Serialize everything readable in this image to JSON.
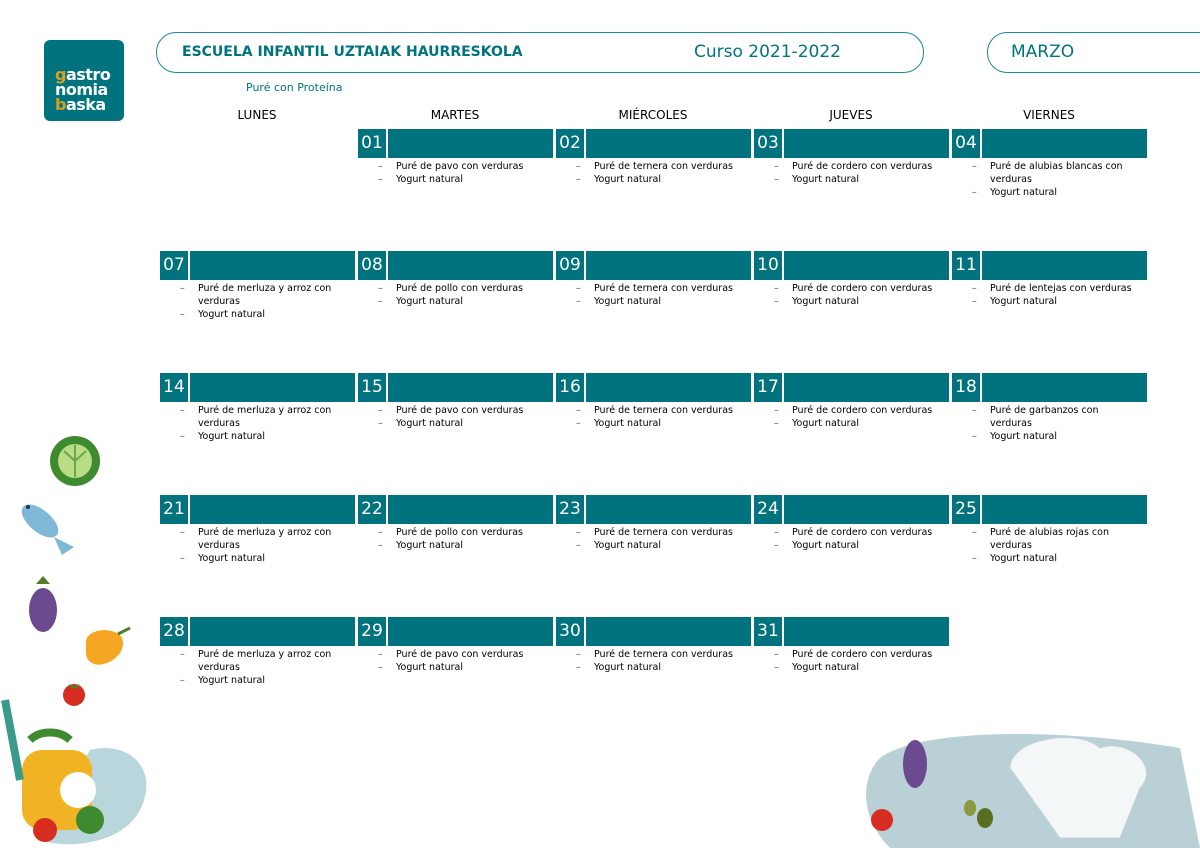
{
  "logo": {
    "line1": "gastro",
    "line2": "nomia",
    "line3": "baska",
    "accent": "#d9a01e"
  },
  "header": {
    "school": "ESCUELA INFANTIL UZTAIAK HAURRESKOLA",
    "course": "Curso 2021-2022",
    "month": "MARZO"
  },
  "subtitle": "Puré con Proteína",
  "colors": {
    "primary": "#00737f"
  },
  "weekdays": [
    "LUNES",
    "MARTES",
    "MIÉRCOLES",
    "JUEVES",
    "VIERNES"
  ],
  "weeks": [
    [
      null,
      {
        "day": "01",
        "items": [
          "Puré de pavo con verduras",
          "Yogurt natural"
        ]
      },
      {
        "day": "02",
        "items": [
          "Puré de ternera con verduras",
          "Yogurt natural"
        ]
      },
      {
        "day": "03",
        "items": [
          "Puré de cordero con verduras",
          "Yogurt natural"
        ]
      },
      {
        "day": "04",
        "items": [
          "Puré de alubias blancas con verduras",
          "Yogurt natural"
        ]
      }
    ],
    [
      {
        "day": "07",
        "items": [
          "Puré de merluza y arroz con verduras",
          "Yogurt natural"
        ]
      },
      {
        "day": "08",
        "items": [
          "Puré de pollo con verduras",
          "Yogurt natural"
        ]
      },
      {
        "day": "09",
        "items": [
          "Puré de ternera con verduras",
          "Yogurt natural"
        ]
      },
      {
        "day": "10",
        "items": [
          "Puré de cordero con verduras",
          "Yogurt natural"
        ]
      },
      {
        "day": "11",
        "items": [
          "Puré de lentejas con verduras",
          "Yogurt natural"
        ]
      }
    ],
    [
      {
        "day": "14",
        "items": [
          "Puré de merluza y arroz con verduras",
          "Yogurt natural"
        ]
      },
      {
        "day": "15",
        "items": [
          "Puré de pavo con verduras",
          "Yogurt natural"
        ]
      },
      {
        "day": "16",
        "items": [
          "Puré de ternera con verduras",
          "Yogurt natural"
        ]
      },
      {
        "day": "17",
        "items": [
          "Puré de cordero con verduras",
          "Yogurt natural"
        ]
      },
      {
        "day": "18",
        "items": [
          "Puré de garbanzos con verduras",
          "Yogurt natural"
        ]
      }
    ],
    [
      {
        "day": "21",
        "items": [
          "Puré de merluza y arroz con verduras",
          "Yogurt natural"
        ]
      },
      {
        "day": "22",
        "items": [
          "Puré de pollo con verduras",
          "Yogurt natural"
        ]
      },
      {
        "day": "23",
        "items": [
          "Puré de ternera con verduras",
          "Yogurt natural"
        ]
      },
      {
        "day": "24",
        "items": [
          "Puré de cordero con verduras",
          "Yogurt natural"
        ]
      },
      {
        "day": "25",
        "items": [
          "Puré de alubias rojas con verduras",
          "Yogurt natural"
        ]
      }
    ],
    [
      {
        "day": "28",
        "items": [
          "Puré de merluza y arroz con verduras",
          "Yogurt natural"
        ]
      },
      {
        "day": "29",
        "items": [
          "Puré de pavo con verduras",
          "Yogurt natural"
        ]
      },
      {
        "day": "30",
        "items": [
          "Puré de ternera con verduras",
          "Yogurt natural"
        ]
      },
      {
        "day": "31",
        "items": [
          "Puré de cordero con verduras",
          "Yogurt natural"
        ]
      },
      null
    ]
  ]
}
